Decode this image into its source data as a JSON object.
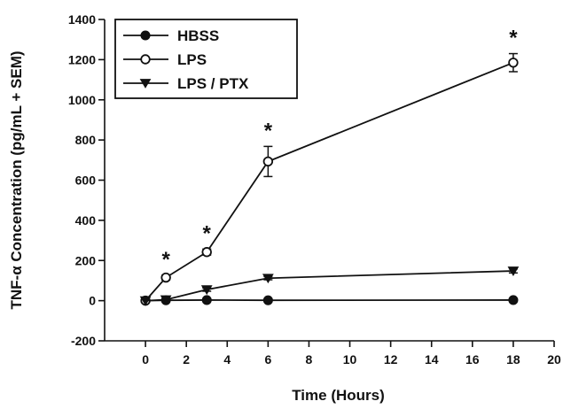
{
  "chart_data": {
    "type": "line",
    "xlabel": "Time (Hours)",
    "ylabel": "TNF-α Concentration (pg/mL + SEM)",
    "xlim": [
      -2,
      20
    ],
    "ylim": [
      -200,
      1400
    ],
    "xticks": [
      0,
      2,
      4,
      6,
      8,
      10,
      12,
      14,
      16,
      18,
      20
    ],
    "yticks": [
      -200,
      0,
      200,
      400,
      600,
      800,
      1000,
      1200,
      1400
    ],
    "x_tick_labels": [
      "0",
      "2",
      "4",
      "6",
      "8",
      "10",
      "12",
      "14",
      "16",
      "18",
      "20"
    ],
    "y_tick_labels": [
      "-200",
      "0",
      "200",
      "400",
      "600",
      "800",
      "1000",
      "1200",
      "1400"
    ],
    "grid": false,
    "legend_position": "top-left",
    "series": [
      {
        "name": "HBSS",
        "marker": "filled-circle",
        "x": [
          0,
          1,
          3,
          6,
          18
        ],
        "y": [
          0,
          2,
          3,
          2,
          3
        ],
        "error": [
          0,
          0,
          0,
          0,
          0
        ]
      },
      {
        "name": "LPS",
        "marker": "open-circle",
        "x": [
          0,
          1,
          3,
          6,
          18
        ],
        "y": [
          0,
          115,
          242,
          693,
          1185
        ],
        "error": [
          0,
          12,
          15,
          75,
          45
        ]
      },
      {
        "name": "LPS / PTX",
        "marker": "filled-triangle-down",
        "x": [
          0,
          1,
          3,
          6,
          18
        ],
        "y": [
          0,
          5,
          55,
          112,
          148
        ],
        "error": [
          0,
          0,
          8,
          8,
          10
        ]
      }
    ],
    "significance": [
      {
        "x": 1,
        "y": 115,
        "label": "*"
      },
      {
        "x": 3,
        "y": 242,
        "label": "*"
      },
      {
        "x": 6,
        "y": 693,
        "label": "*"
      },
      {
        "x": 18,
        "y": 1185,
        "label": "*"
      }
    ],
    "colors": {
      "ink": "#111111",
      "background": "#ffffff"
    }
  }
}
